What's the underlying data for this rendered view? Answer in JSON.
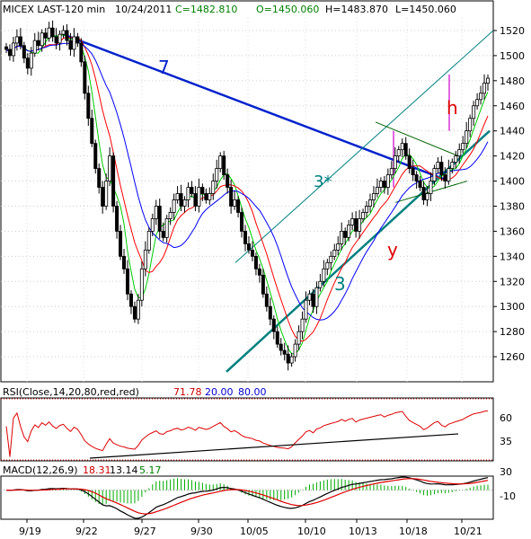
{
  "header": {
    "symbol": "MICEX LAST-120 min",
    "date": "10/24/2011",
    "close": "C=1482.810",
    "open": "O=1450.060",
    "high": "H=1483.870",
    "low": "L=1450.060"
  },
  "rsi_header": {
    "label": "RSI(Close,14,20,80,red,red)",
    "value": "71.78",
    "lower": "20.00",
    "upper": "80.00"
  },
  "macd_header": {
    "label": "MACD(12,26,9)",
    "macd": "18.31",
    "signal": "13.14",
    "hist": "5.17"
  },
  "annotations": {
    "line7": "7",
    "line3": "3",
    "line3star": "3*",
    "y": "y",
    "h": "h"
  },
  "colors": {
    "candle": "#000000",
    "ma_blue": "#0000ff",
    "ma_red": "#ff0000",
    "ma_green": "#00cc00",
    "trend_blue": "#0022cc",
    "trend_teal": "#008080",
    "annot_red": "#dd0000",
    "annot_magenta": "#cc00cc",
    "rsi": "#dd0000"
  },
  "chart_data": [
    {
      "type": "candlestick",
      "title": "MICEX LAST-120 min",
      "ylim": [
        1240,
        1530
      ],
      "y_ticks": [
        "1520",
        "1500",
        "1480",
        "1460",
        "1440",
        "1420",
        "1400",
        "1380",
        "1360",
        "1340",
        "1320",
        "1300",
        "1280",
        "1260"
      ],
      "x_ticks": [
        "9/19",
        "9/22",
        "9/27",
        "9/30",
        "10/05",
        "10/10",
        "10/13",
        "10/18",
        "10/21"
      ],
      "closes": [
        1505,
        1500,
        1510,
        1515,
        1508,
        1498,
        1490,
        1502,
        1512,
        1508,
        1518,
        1514,
        1522,
        1515,
        1510,
        1517,
        1520,
        1512,
        1505,
        1515,
        1510,
        1495,
        1470,
        1450,
        1430,
        1410,
        1395,
        1380,
        1400,
        1420,
        1380,
        1360,
        1340,
        1330,
        1310,
        1300,
        1290,
        1305,
        1330,
        1345,
        1360,
        1370,
        1380,
        1360,
        1355,
        1370,
        1375,
        1385,
        1390,
        1380,
        1385,
        1395,
        1390,
        1380,
        1395,
        1390,
        1385,
        1390,
        1400,
        1410,
        1420,
        1405,
        1395,
        1380,
        1385,
        1375,
        1360,
        1350,
        1345,
        1340,
        1330,
        1325,
        1310,
        1300,
        1290,
        1280,
        1270,
        1265,
        1262,
        1255,
        1260,
        1270,
        1280,
        1290,
        1305,
        1310,
        1300,
        1315,
        1320,
        1330,
        1335,
        1340,
        1345,
        1350,
        1360,
        1355,
        1365,
        1370,
        1360,
        1370,
        1375,
        1380,
        1385,
        1390,
        1395,
        1400,
        1395,
        1405,
        1410,
        1420,
        1425,
        1430,
        1420,
        1410,
        1405,
        1400,
        1395,
        1385,
        1390,
        1400,
        1410,
        1415,
        1405,
        1400,
        1410,
        1415,
        1420,
        1425,
        1430,
        1440,
        1450,
        1460,
        1465,
        1470,
        1478,
        1482
      ]
    },
    {
      "type": "line",
      "title": "RSI(Close,14,20,80,red,red)",
      "ylim": [
        0,
        100
      ],
      "y_ticks": [
        "60",
        "35"
      ],
      "levels": [
        20,
        80
      ]
    },
    {
      "type": "macd",
      "title": "MACD(12,26,9)",
      "y_ticks": [
        "30",
        "-10"
      ]
    }
  ]
}
